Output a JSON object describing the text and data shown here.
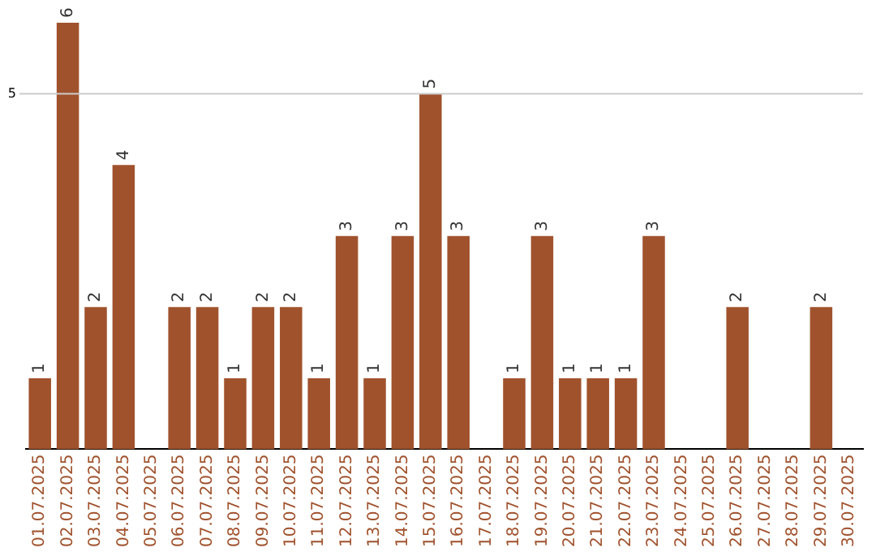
{
  "chart_data": {
    "type": "bar",
    "categories": [
      "01.07.2025",
      "02.07.2025",
      "03.07.2025",
      "04.07.2025",
      "05.07.2025",
      "06.07.2025",
      "07.07.2025",
      "08.07.2025",
      "09.07.2025",
      "10.07.2025",
      "11.07.2025",
      "12.07.2025",
      "13.07.2025",
      "14.07.2025",
      "15.07.2025",
      "16.07.2025",
      "17.07.2025",
      "18.07.2025",
      "19.07.2025",
      "20.07.2025",
      "21.07.2025",
      "22.07.2025",
      "23.07.2025",
      "24.07.2025",
      "25.07.2025",
      "26.07.2025",
      "27.07.2025",
      "28.07.2025",
      "29.07.2025",
      "30.07.2025"
    ],
    "values": [
      1,
      6,
      2,
      4,
      0,
      2,
      2,
      1,
      2,
      2,
      1,
      3,
      1,
      3,
      5,
      3,
      0,
      1,
      3,
      1,
      1,
      1,
      3,
      0,
      0,
      2,
      0,
      0,
      2,
      0
    ],
    "value_labels": [
      "1",
      "6",
      "2",
      "4",
      null,
      "2",
      "2",
      "1",
      "2",
      "2",
      "1",
      "3",
      "1",
      "3",
      "5",
      "3",
      null,
      "1",
      "3",
      "1",
      "1",
      "1",
      "3",
      null,
      null,
      "2",
      null,
      null,
      "2",
      null
    ],
    "color": "#a0522d",
    "ref_lines": [
      {
        "axis": "y",
        "value": 5,
        "label": "5",
        "color": "#cccccc"
      }
    ],
    "legend": false
  }
}
